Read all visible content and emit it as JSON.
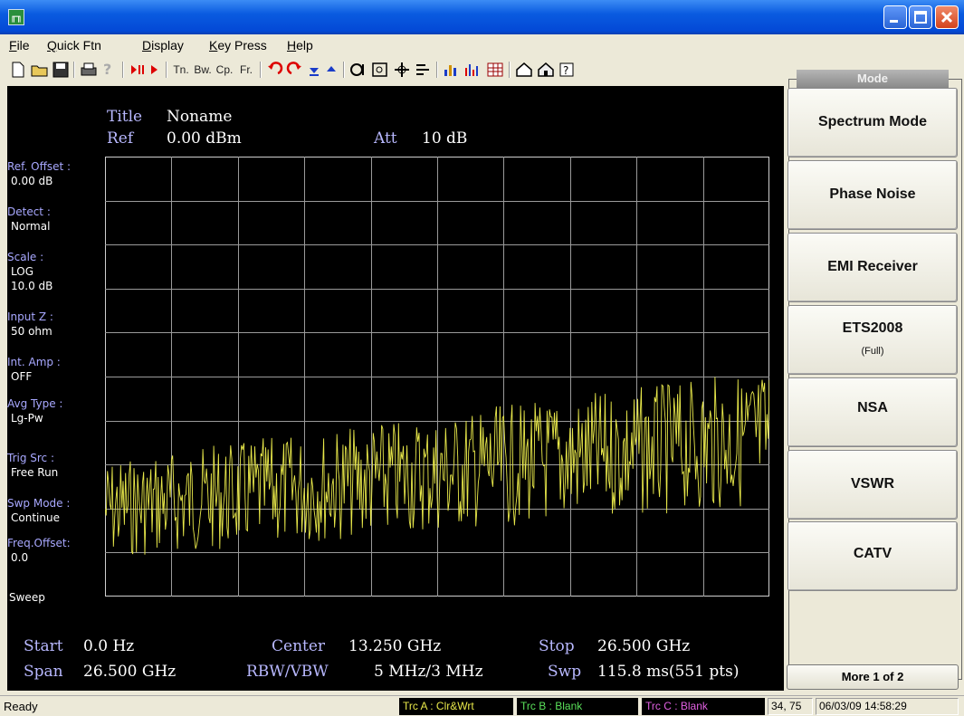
{
  "window": {
    "icon_glyph": "╓╖"
  },
  "menu": [
    {
      "prefix": "",
      "accel": "F",
      "rest": "ile"
    },
    {
      "prefix": "",
      "accel": "Q",
      "rest": "uick Ftn"
    },
    {
      "prefix": "",
      "accel": "D",
      "rest": "isplay"
    },
    {
      "prefix": "",
      "accel": "K",
      "rest": "ey Press"
    },
    {
      "prefix": "",
      "accel": "H",
      "rest": "elp"
    }
  ],
  "toolbar": {
    "icons": [
      "new-file-icon",
      "open-folder-icon",
      "save-icon",
      "print-icon",
      "help-question-icon",
      "play-pause-icon",
      "play-icon"
    ],
    "text_buttons": [
      "Tn.",
      "Bw.",
      "Cp.",
      "Fr."
    ]
  },
  "screen": {
    "title_label": "Title",
    "title_value": "Noname",
    "ref_label": "Ref",
    "ref_value": "0.00 dBm",
    "att_label": "Att",
    "att_value": "10 dB",
    "side": [
      {
        "label": "Ref. Offset :",
        "values": [
          "0.00 dB"
        ]
      },
      {
        "label": "Detect :",
        "values": [
          "Normal"
        ]
      },
      {
        "label": "Scale :",
        "values": [
          "LOG",
          "10.0 dB"
        ]
      },
      {
        "label": "Input Z :",
        "values": [
          "50 ohm"
        ]
      },
      {
        "label": "Int. Amp :",
        "values": [
          "OFF"
        ]
      },
      {
        "label": "Avg Type :",
        "values": [
          "Lg-Pw"
        ]
      },
      {
        "label": "Trig Src :",
        "values": [
          "Free Run"
        ]
      },
      {
        "label": "Swp Mode :",
        "values": [
          "Continue"
        ]
      },
      {
        "label": "Freq.Offset:",
        "values": [
          "0.0"
        ]
      }
    ],
    "sweep_label": "Sweep",
    "footer": {
      "start_label": "Start",
      "start_value": "0.0 Hz",
      "center_label": "Center",
      "center_value": "13.250 GHz",
      "stop_label": "Stop",
      "stop_value": "26.500 GHz",
      "span_label": "Span",
      "span_value": "26.500 GHz",
      "rbw_label": "RBW/VBW",
      "rbw_value": "5 MHz/3 MHz",
      "swp_label": "Swp",
      "swp_value": "115.8 ms(551 pts)"
    },
    "trace_color": "#e8e84a"
  },
  "mode_panel": {
    "title": "Mode",
    "buttons": [
      {
        "label": "Spectrum Mode",
        "sub": ""
      },
      {
        "label": "Phase Noise",
        "sub": ""
      },
      {
        "label": "EMI Receiver",
        "sub": ""
      },
      {
        "label": "ETS2008",
        "sub": "(Full)"
      },
      {
        "label": "NSA",
        "sub": ""
      },
      {
        "label": "VSWR",
        "sub": ""
      },
      {
        "label": "CATV",
        "sub": ""
      }
    ],
    "more": "More 1 of 2"
  },
  "status": {
    "ready": "Ready",
    "trc_a": "Trc A : Clr&Wrt",
    "trc_b": "Trc B : Blank",
    "trc_c": "Trc C : Blank",
    "coords": "34, 75",
    "datetime": "06/03/09  14:58:29"
  }
}
